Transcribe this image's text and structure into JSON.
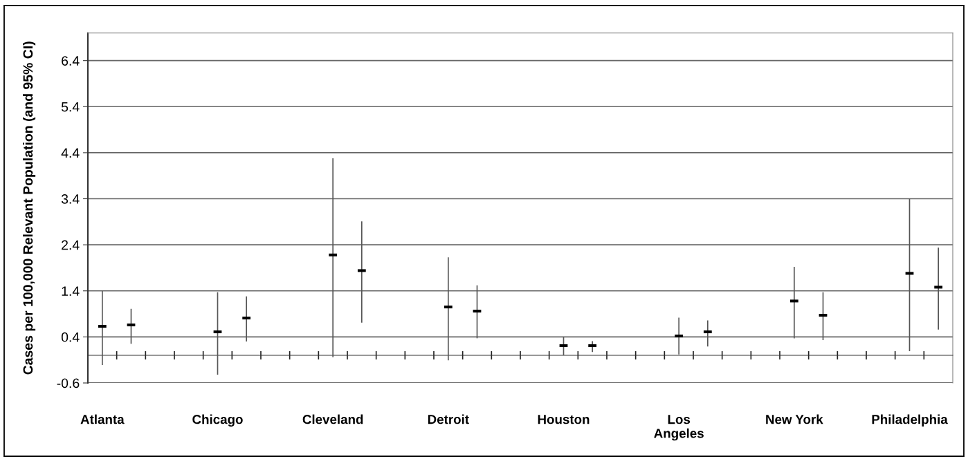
{
  "chart_data": {
    "type": "scatter",
    "ylabel": "Cases per 100,000 Relevant Population (and 95% CI)",
    "categories": [
      "Atlanta",
      null,
      null,
      null,
      "Chicago",
      null,
      null,
      null,
      "Cleveland",
      null,
      null,
      null,
      "Detroit",
      null,
      null,
      null,
      "Houston",
      null,
      null,
      null,
      "Los\nAngeles",
      null,
      null,
      null,
      "New York",
      null,
      null,
      null,
      "Philadelphia",
      null
    ],
    "values": [
      0.63,
      0.66,
      null,
      null,
      0.51,
      0.81,
      null,
      null,
      2.18,
      1.84,
      null,
      null,
      1.05,
      0.96,
      null,
      null,
      0.21,
      0.21,
      null,
      null,
      0.42,
      0.51,
      null,
      null,
      1.18,
      0.87,
      null,
      null,
      1.78,
      1.48
    ],
    "errors": [
      [
        -0.21,
        1.4
      ],
      [
        0.25,
        1.01
      ],
      null,
      null,
      [
        -0.42,
        1.37
      ],
      [
        0.3,
        1.28
      ],
      null,
      null,
      [
        -0.04,
        4.28
      ],
      [
        0.71,
        2.91
      ],
      null,
      null,
      [
        -0.11,
        2.13
      ],
      [
        0.37,
        1.52
      ],
      null,
      null,
      [
        0.0,
        0.4
      ],
      [
        0.07,
        0.31
      ],
      null,
      null,
      [
        0.02,
        0.82
      ],
      [
        0.19,
        0.76
      ],
      null,
      null,
      [
        0.37,
        1.92
      ],
      [
        0.33,
        1.37
      ],
      null,
      null,
      [
        0.09,
        3.4
      ],
      [
        0.56,
        2.34
      ]
    ],
    "color": "#000000",
    "ylim": [
      -0.6,
      7.0
    ],
    "yticks": [
      -0.6,
      0.4,
      1.4,
      2.4,
      3.4,
      4.4,
      5.4,
      6.4
    ],
    "grid": "y"
  }
}
